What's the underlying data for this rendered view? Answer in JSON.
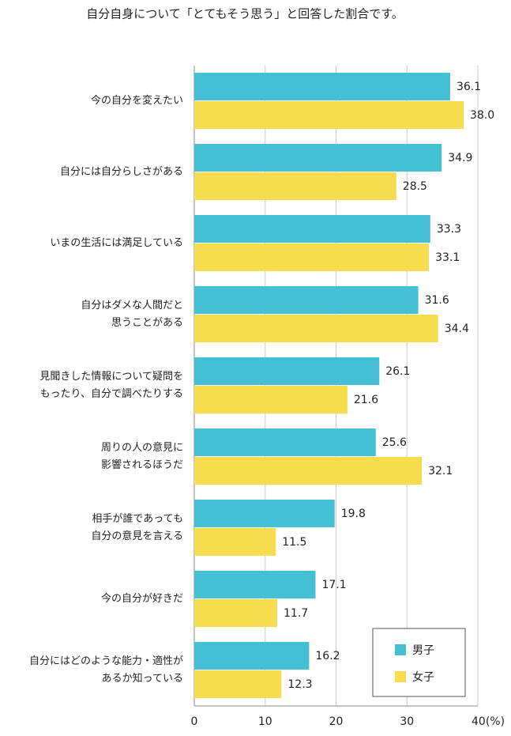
{
  "chart_data": {
    "type": "bar",
    "orientation": "horizontal",
    "title": "自分自身について「とてもそう思う」と回答した割合です。",
    "categories": [
      "今の自分を変えたい",
      "自分には自分らしさがある",
      "いまの生活には満足している",
      "自分はダメな人間だと\n思うことがある",
      "見聞きした情報について疑問を\nもったり、自分で調べたりする",
      "周りの人の意見に\n影響されるほうだ",
      "相手が誰であっても\n自分の意見を言える",
      "今の自分が好きだ",
      "自分にはどのような能力・適性が\nあるか知っている"
    ],
    "series": [
      {
        "name": "男子",
        "color": "#45bfd3",
        "values": [
          36.1,
          34.9,
          33.3,
          31.6,
          26.1,
          25.6,
          19.8,
          17.1,
          16.2
        ],
        "value_labels": [
          "36.1",
          "34.9",
          "33.3",
          "31.6",
          "26.1",
          "25.6",
          "19.8",
          "17.1",
          "16.2"
        ]
      },
      {
        "name": "女子",
        "color": "#f7dc50",
        "values": [
          38.0,
          28.5,
          33.1,
          34.4,
          21.6,
          32.1,
          11.5,
          11.7,
          12.3
        ],
        "value_labels": [
          "38.0",
          "28.5",
          "33.1",
          "34.4",
          "21.6",
          "32.1",
          "11.5",
          "11.7",
          "12.3"
        ]
      }
    ],
    "xlim": [
      0,
      40
    ],
    "xticks": [
      0,
      10,
      20,
      30,
      {
        "value": 40,
        "label": "40(%)"
      }
    ],
    "grid": true
  }
}
